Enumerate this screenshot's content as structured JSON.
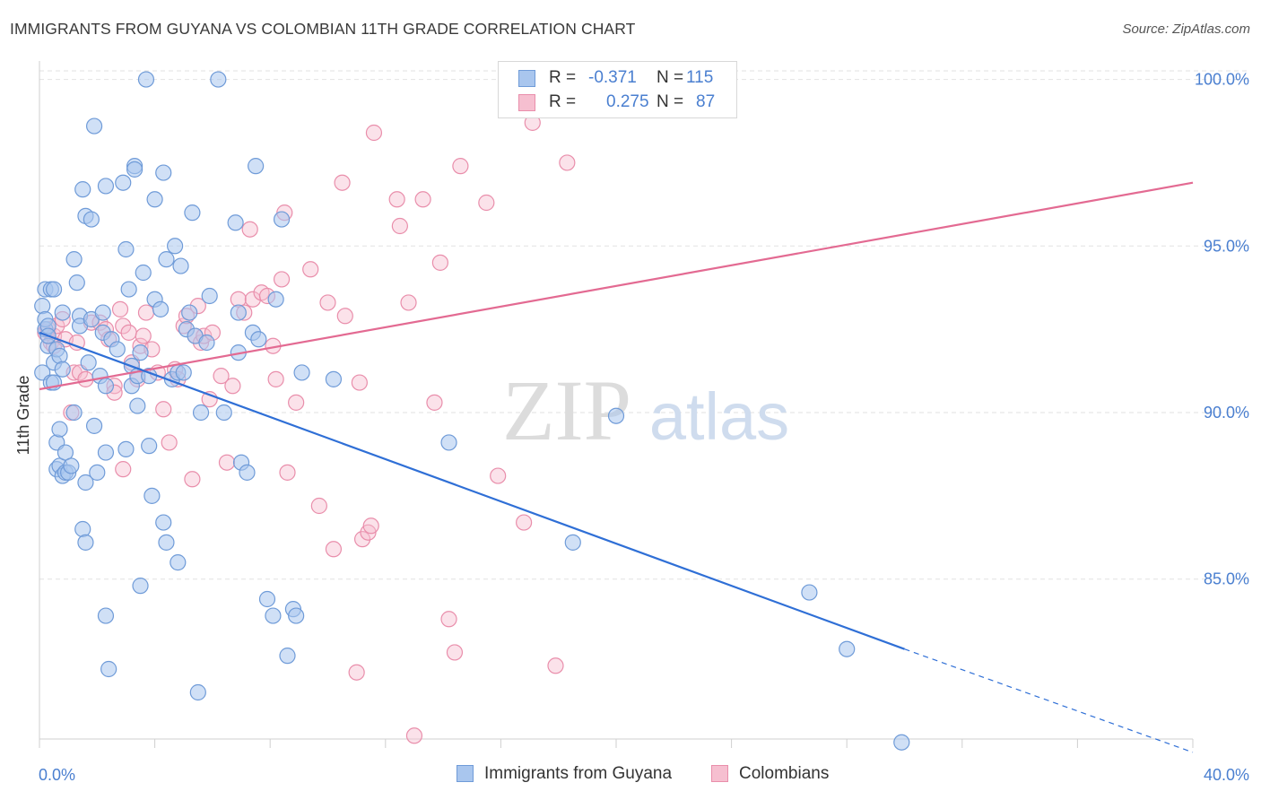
{
  "header": {
    "title": "IMMIGRANTS FROM GUYANA VS COLOMBIAN 11TH GRADE CORRELATION CHART",
    "source": "Source: ZipAtlas.com"
  },
  "watermark": {
    "zip": "ZIP",
    "atlas": "atlas"
  },
  "legend": {
    "series": [
      {
        "r_label": "R =",
        "r_value": "-0.371",
        "n_label": "N =",
        "n_value": "115"
      },
      {
        "r_label": "R =",
        "r_value": "0.275",
        "n_label": "N =",
        "n_value": "87"
      }
    ]
  },
  "bottom_legend": {
    "guyana": "Immigrants from Guyana",
    "colombians": "Colombians"
  },
  "colors": {
    "guyana_fill": "#a9c6ee",
    "guyana_stroke": "#6f9bd8",
    "guyana_line": "#2f6fd6",
    "colombian_fill": "#f6bfd0",
    "colombian_stroke": "#e98eab",
    "colombian_line": "#e36a92",
    "tick_label": "#4a7fd0",
    "grid": "#e2e2e2"
  },
  "chart_data": {
    "type": "scatter",
    "title": "IMMIGRANTS FROM GUYANA VS COLOMBIAN 11TH GRADE CORRELATION CHART",
    "xlabel": "",
    "ylabel": "11th Grade",
    "xlim": [
      0,
      40
    ],
    "ylim": [
      80.2,
      100.5
    ],
    "x_tick_labels": [
      "0.0%",
      "40.0%"
    ],
    "y_ticks": [
      {
        "value": 85,
        "label": "85.0%"
      },
      {
        "value": 90,
        "label": "90.0%"
      },
      {
        "value": 95,
        "label": "95.0%"
      },
      {
        "value": 100,
        "label": "100.0%"
      }
    ],
    "grid": "horizontal dashed",
    "legend_placement": "top-center",
    "series": [
      {
        "name": "Immigrants from Guyana",
        "r": -0.371,
        "n": 115,
        "trend": {
          "x": [
            0,
            30
          ],
          "y": [
            92.4,
            82.9
          ],
          "dashed_extension": {
            "x": [
              30,
              40
            ],
            "y": [
              82.9,
              79.8
            ]
          }
        },
        "points": [
          [
            0.1,
            93.2
          ],
          [
            0.1,
            91.2
          ],
          [
            0.2,
            92.5
          ],
          [
            0.2,
            92.8
          ],
          [
            0.2,
            93.7
          ],
          [
            0.3,
            92.6
          ],
          [
            0.3,
            92.0
          ],
          [
            0.3,
            92.3
          ],
          [
            0.4,
            93.7
          ],
          [
            0.4,
            90.9
          ],
          [
            0.5,
            93.7
          ],
          [
            0.5,
            91.5
          ],
          [
            0.5,
            90.9
          ],
          [
            0.6,
            91.9
          ],
          [
            0.6,
            89.1
          ],
          [
            0.6,
            88.3
          ],
          [
            0.7,
            89.5
          ],
          [
            0.7,
            88.4
          ],
          [
            0.7,
            91.7
          ],
          [
            0.8,
            93.0
          ],
          [
            0.8,
            91.3
          ],
          [
            0.8,
            88.1
          ],
          [
            0.9,
            88.2
          ],
          [
            0.9,
            88.8
          ],
          [
            1.0,
            88.2
          ],
          [
            1.1,
            88.4
          ],
          [
            1.2,
            90.0
          ],
          [
            1.2,
            94.6
          ],
          [
            1.3,
            93.9
          ],
          [
            1.4,
            92.9
          ],
          [
            1.4,
            92.6
          ],
          [
            1.5,
            96.7
          ],
          [
            1.5,
            86.5
          ],
          [
            1.6,
            95.9
          ],
          [
            1.6,
            86.1
          ],
          [
            1.6,
            87.9
          ],
          [
            1.7,
            91.5
          ],
          [
            1.8,
            95.8
          ],
          [
            1.8,
            92.8
          ],
          [
            1.9,
            89.6
          ],
          [
            1.9,
            98.6
          ],
          [
            2.0,
            88.2
          ],
          [
            2.1,
            91.1
          ],
          [
            2.2,
            93.0
          ],
          [
            2.2,
            92.4
          ],
          [
            2.3,
            96.8
          ],
          [
            2.3,
            90.8
          ],
          [
            2.3,
            88.8
          ],
          [
            2.3,
            83.9
          ],
          [
            2.4,
            82.3
          ],
          [
            2.5,
            92.2
          ],
          [
            2.7,
            91.9
          ],
          [
            2.9,
            96.9
          ],
          [
            3.0,
            94.9
          ],
          [
            3.0,
            88.9
          ],
          [
            3.1,
            93.7
          ],
          [
            3.2,
            91.4
          ],
          [
            3.2,
            90.8
          ],
          [
            3.3,
            97.4
          ],
          [
            3.3,
            97.3
          ],
          [
            3.4,
            91.1
          ],
          [
            3.4,
            90.2
          ],
          [
            3.5,
            91.8
          ],
          [
            3.5,
            84.8
          ],
          [
            3.6,
            94.2
          ],
          [
            3.7,
            100.0
          ],
          [
            3.8,
            91.1
          ],
          [
            3.8,
            89.0
          ],
          [
            3.9,
            87.5
          ],
          [
            4.0,
            96.4
          ],
          [
            4.0,
            93.4
          ],
          [
            4.2,
            93.1
          ],
          [
            4.3,
            97.2
          ],
          [
            4.3,
            86.7
          ],
          [
            4.4,
            94.6
          ],
          [
            4.4,
            86.1
          ],
          [
            4.6,
            91.0
          ],
          [
            4.7,
            95.0
          ],
          [
            4.8,
            91.2
          ],
          [
            4.8,
            85.5
          ],
          [
            4.9,
            94.4
          ],
          [
            5.0,
            91.2
          ],
          [
            5.1,
            92.5
          ],
          [
            5.2,
            93.0
          ],
          [
            5.3,
            96.0
          ],
          [
            5.4,
            92.3
          ],
          [
            5.5,
            81.6
          ],
          [
            5.6,
            90.0
          ],
          [
            5.8,
            92.1
          ],
          [
            5.9,
            93.5
          ],
          [
            6.2,
            100.0
          ],
          [
            6.4,
            90.0
          ],
          [
            6.8,
            95.7
          ],
          [
            6.9,
            93.0
          ],
          [
            6.9,
            91.8
          ],
          [
            7.0,
            88.5
          ],
          [
            7.2,
            88.2
          ],
          [
            7.4,
            92.4
          ],
          [
            7.5,
            97.4
          ],
          [
            7.6,
            92.2
          ],
          [
            7.9,
            84.4
          ],
          [
            8.1,
            83.9
          ],
          [
            8.2,
            93.4
          ],
          [
            8.4,
            95.8
          ],
          [
            8.6,
            82.7
          ],
          [
            8.8,
            84.1
          ],
          [
            8.9,
            83.9
          ],
          [
            9.1,
            91.2
          ],
          [
            10.2,
            91.0
          ],
          [
            14.2,
            89.1
          ],
          [
            18.5,
            86.1
          ],
          [
            20.0,
            89.9
          ],
          [
            26.7,
            84.6
          ],
          [
            28.0,
            82.9
          ],
          [
            29.9,
            80.1
          ]
        ]
      },
      {
        "name": "Colombians",
        "r": 0.275,
        "n": 87,
        "trend": {
          "x": [
            0,
            40
          ],
          "y": [
            90.7,
            96.9
          ]
        },
        "points": [
          [
            0.2,
            92.4
          ],
          [
            0.3,
            92.5
          ],
          [
            0.4,
            92.1
          ],
          [
            0.5,
            92.3
          ],
          [
            0.5,
            92.0
          ],
          [
            0.6,
            92.6
          ],
          [
            0.8,
            92.8
          ],
          [
            0.9,
            92.2
          ],
          [
            1.1,
            90.0
          ],
          [
            1.2,
            91.2
          ],
          [
            1.3,
            92.1
          ],
          [
            1.4,
            91.2
          ],
          [
            1.6,
            91.0
          ],
          [
            1.8,
            92.7
          ],
          [
            2.1,
            92.7
          ],
          [
            2.3,
            92.5
          ],
          [
            2.4,
            92.2
          ],
          [
            2.6,
            90.8
          ],
          [
            2.6,
            90.6
          ],
          [
            2.8,
            93.1
          ],
          [
            2.9,
            92.6
          ],
          [
            2.9,
            88.3
          ],
          [
            3.1,
            92.4
          ],
          [
            3.2,
            91.5
          ],
          [
            3.4,
            91.0
          ],
          [
            3.5,
            92.0
          ],
          [
            3.6,
            92.3
          ],
          [
            3.7,
            93.0
          ],
          [
            3.9,
            91.9
          ],
          [
            4.1,
            91.2
          ],
          [
            4.3,
            90.1
          ],
          [
            4.5,
            89.1
          ],
          [
            4.7,
            91.3
          ],
          [
            4.8,
            91.0
          ],
          [
            5.0,
            92.6
          ],
          [
            5.1,
            92.9
          ],
          [
            5.3,
            88.0
          ],
          [
            5.4,
            92.3
          ],
          [
            5.5,
            93.2
          ],
          [
            5.6,
            92.1
          ],
          [
            5.7,
            92.3
          ],
          [
            5.9,
            90.4
          ],
          [
            6.0,
            92.4
          ],
          [
            6.3,
            91.1
          ],
          [
            6.5,
            88.5
          ],
          [
            6.7,
            90.8
          ],
          [
            6.9,
            93.4
          ],
          [
            7.1,
            93.0
          ],
          [
            7.3,
            95.5
          ],
          [
            7.4,
            93.4
          ],
          [
            7.7,
            93.6
          ],
          [
            7.9,
            93.5
          ],
          [
            8.1,
            92.0
          ],
          [
            8.2,
            91.0
          ],
          [
            8.4,
            94.0
          ],
          [
            8.5,
            96.0
          ],
          [
            8.6,
            88.2
          ],
          [
            8.9,
            90.3
          ],
          [
            9.4,
            94.3
          ],
          [
            9.7,
            87.2
          ],
          [
            10.0,
            93.3
          ],
          [
            10.2,
            85.9
          ],
          [
            10.5,
            96.9
          ],
          [
            10.6,
            92.9
          ],
          [
            11.0,
            82.2
          ],
          [
            11.1,
            90.9
          ],
          [
            11.2,
            86.2
          ],
          [
            11.4,
            86.4
          ],
          [
            11.5,
            86.6
          ],
          [
            11.6,
            98.4
          ],
          [
            12.4,
            96.4
          ],
          [
            12.5,
            95.6
          ],
          [
            12.8,
            93.3
          ],
          [
            13.0,
            80.3
          ],
          [
            13.3,
            96.4
          ],
          [
            13.7,
            90.3
          ],
          [
            13.9,
            94.5
          ],
          [
            14.2,
            83.8
          ],
          [
            14.4,
            82.8
          ],
          [
            14.6,
            97.4
          ],
          [
            15.5,
            96.3
          ],
          [
            15.9,
            88.1
          ],
          [
            16.4,
            100.0
          ],
          [
            16.8,
            86.7
          ],
          [
            17.1,
            98.7
          ],
          [
            17.9,
            82.4
          ],
          [
            18.3,
            97.5
          ]
        ]
      }
    ]
  }
}
